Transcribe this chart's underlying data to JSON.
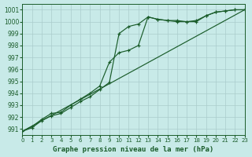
{
  "title": "Graphe pression niveau de la mer (hPa)",
  "bg_color": "#c8eae8",
  "grid_color": "#aacccc",
  "line_color": "#1a5c2a",
  "x_min": 0,
  "x_max": 23,
  "y_min": 990.5,
  "y_max": 1001.5,
  "y_ticks": [
    991,
    992,
    993,
    994,
    995,
    996,
    997,
    998,
    999,
    1000,
    1001
  ],
  "x_ticks": [
    0,
    1,
    2,
    3,
    4,
    5,
    6,
    7,
    8,
    9,
    10,
    11,
    12,
    13,
    14,
    15,
    16,
    17,
    18,
    19,
    20,
    21,
    22,
    23
  ],
  "line1_x": [
    0,
    1,
    2,
    3,
    4,
    5,
    6,
    7,
    8,
    9,
    10,
    11,
    12,
    13,
    14,
    15,
    16,
    17,
    18,
    19,
    20,
    21,
    22,
    23
  ],
  "line1_y": [
    990.8,
    991.1,
    991.7,
    992.1,
    992.3,
    992.8,
    993.3,
    993.7,
    994.3,
    994.9,
    999.0,
    999.6,
    999.8,
    1000.4,
    1000.2,
    1000.1,
    1000.0,
    1000.0,
    1000.0,
    1000.5,
    1000.8,
    1000.9,
    1001.0,
    1001.0
  ],
  "line2_x": [
    0,
    1,
    2,
    3,
    4,
    5,
    6,
    7,
    8,
    9,
    10,
    11,
    12,
    13,
    14,
    15,
    16,
    17,
    18,
    19,
    20,
    21,
    22,
    23
  ],
  "line2_y": [
    990.8,
    991.2,
    991.8,
    992.3,
    992.4,
    993.0,
    993.5,
    994.0,
    994.6,
    996.6,
    997.4,
    997.6,
    998.0,
    1000.4,
    1000.2,
    1000.1,
    1000.1,
    1000.0,
    1000.1,
    1000.5,
    1000.8,
    1000.9,
    1001.0,
    1001.0
  ],
  "line3_x": [
    0,
    23
  ],
  "line3_y": [
    990.8,
    1001.0
  ],
  "title_fontsize": 6.5,
  "tick_fontsize": 5.5,
  "x_tick_fontsize": 5.0
}
